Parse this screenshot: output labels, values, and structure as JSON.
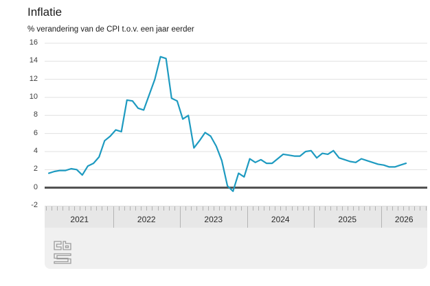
{
  "header": {
    "title": "Inflatie",
    "subtitle": "% verandering van de CPI t.o.v. een jaar eerder"
  },
  "colors": {
    "line": "#1d9ac0",
    "grid": "#e0e0e0",
    "zero_line": "#4d4d4d",
    "axis_band_bg": "#e7e7e7",
    "footer_bg": "#f0f0f0",
    "logo": "#9b9b9b",
    "text": "#1a1a1a"
  },
  "chart_data": {
    "type": "line",
    "title": "Inflatie",
    "ylabel": "% verandering van de CPI t.o.v. een jaar eerder",
    "xlabel": "",
    "y_ticks": [
      16,
      14,
      12,
      10,
      8,
      6,
      4,
      2,
      0,
      -2
    ],
    "ylim": [
      -2,
      16
    ],
    "grid": true,
    "legend": "none",
    "x_years": [
      "2021",
      "2022",
      "2023",
      "2024",
      "2025",
      "2026"
    ],
    "x_range": "2021-01 t/m 2026-05, maandcijfers",
    "series": [
      {
        "name": "Inflatie (CPI, % t.o.v. een jaar eerder)",
        "color": "#1d9ac0",
        "values_by_year": {
          "2021": [
            1.6,
            1.8,
            1.9,
            1.9,
            2.1,
            2.0,
            1.4,
            2.4,
            2.7,
            3.4,
            5.2,
            5.7
          ],
          "2022": [
            6.4,
            6.2,
            9.7,
            9.6,
            8.8,
            8.6,
            10.3,
            12.0,
            14.5,
            14.3,
            9.9,
            9.6
          ],
          "2023": [
            7.6,
            8.0,
            4.4,
            5.2,
            6.1,
            5.7,
            4.6,
            3.0,
            0.2,
            -0.4,
            1.6,
            1.2
          ],
          "2024": [
            3.2,
            2.8,
            3.1,
            2.7,
            2.7,
            3.2,
            3.7,
            3.6,
            3.5,
            3.5,
            4.0,
            4.1
          ],
          "2025": [
            3.3,
            3.8,
            3.7,
            4.1,
            3.3,
            3.1,
            2.9,
            2.8,
            3.2,
            3.0,
            2.8,
            2.6
          ],
          "2026": [
            2.5,
            2.3,
            2.3,
            2.5,
            2.7
          ]
        }
      }
    ]
  },
  "footer": {
    "logo_name": "cbs-logo"
  }
}
